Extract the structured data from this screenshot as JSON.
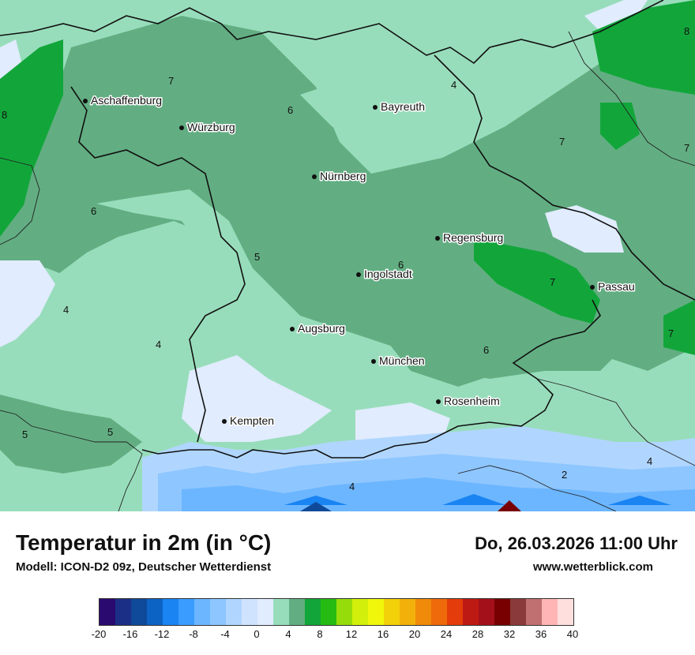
{
  "title": "Temperatur in 2m (in °C)",
  "model": "Modell: ICON-D2 09z, Deutscher Wetterdienst",
  "datetime": "Do, 26.03.2026 11:00 Uhr",
  "website": "www.wetterblick.com",
  "cities": [
    {
      "name": "Aschaffenburg"
    },
    {
      "name": "Würzburg"
    },
    {
      "name": "Bayreuth"
    },
    {
      "name": "Nürnberg"
    },
    {
      "name": "Regensburg"
    },
    {
      "name": "Ingolstadt"
    },
    {
      "name": "Passau"
    },
    {
      "name": "Augsburg"
    },
    {
      "name": "München"
    },
    {
      "name": "Rosenheim"
    },
    {
      "name": "Kempten"
    }
  ],
  "isotherm_labels": [
    "8",
    "7",
    "4",
    "6",
    "7",
    "8",
    "7",
    "6",
    "5",
    "6",
    "4",
    "7",
    "4",
    "6",
    "7",
    "5",
    "5",
    "4",
    "2",
    "4"
  ],
  "scale_ticks": [
    "-20",
    "-16",
    "-12",
    "-8",
    "-4",
    "0",
    "4",
    "8",
    "12",
    "16",
    "20",
    "24",
    "28",
    "32",
    "36",
    "40"
  ],
  "scale_colors": [
    "#2a0a6e",
    "#1c2f86",
    "#0f4a9a",
    "#0c63c4",
    "#1984f2",
    "#3b9cff",
    "#6cb6ff",
    "#8ec6ff",
    "#b0d6ff",
    "#cfe3ff",
    "#e1ecff",
    "#98ddbb",
    "#62ae82",
    "#12a63a",
    "#26bb12",
    "#95dc0a",
    "#d1ef0a",
    "#f0f70a",
    "#f2d10a",
    "#f2b10a",
    "#f08a0a",
    "#ee6a0a",
    "#e43c0a",
    "#be1a14",
    "#a4101a",
    "#780000",
    "#8a3a3a",
    "#c07070",
    "#ffb5b5",
    "#ffdede"
  ]
}
